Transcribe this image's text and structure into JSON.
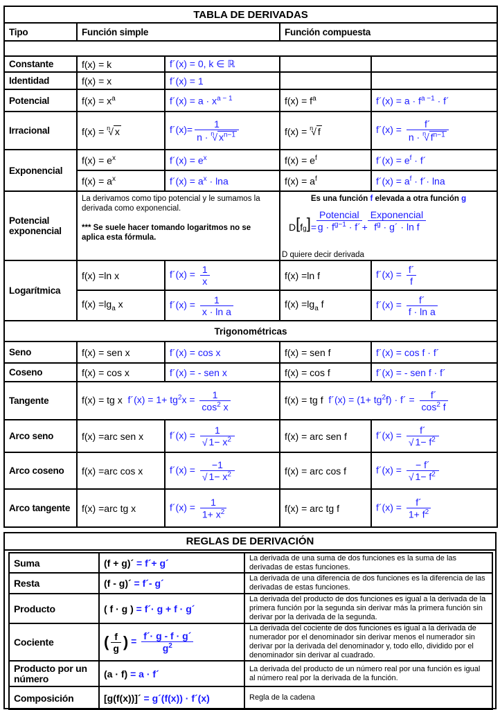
{
  "title": "TABLA DE DERIVADAS",
  "headers": {
    "tipo": "Tipo",
    "simple": "Función simple",
    "compuesta": "Función compuesta"
  },
  "constante": {
    "label": "Constante",
    "f": "f(x) = k",
    "d": "f´(x) = 0, k ∈ ℝ"
  },
  "identidad": {
    "label": "Identidad",
    "f": "f(x) = x",
    "d": "f´(x) = 1"
  },
  "potencial": {
    "label": "Potencial",
    "f": "f(x) = x",
    "f_sup": "a",
    "d": "f´(x) = a · x",
    "d_sup": "a − 1",
    "cf": "f(x) = f",
    "cf_sup": "a",
    "cd": "f´(x) = a · f",
    "cd_sup": "a −1",
    "cd_tail": " · f´"
  },
  "irracional": {
    "label": "Irracional",
    "f": "f(x) = ",
    "idx": "n",
    "f_rad": "x",
    "d_lhs": "f´(x)=",
    "d_num": "1",
    "d_den_pre": "n · ",
    "d_den_rad": "x",
    "d_den_sup": "n−1",
    "cf": "f(x) = ",
    "cf_rad": "f",
    "cd_lhs": "f´(x) = ",
    "cd_num": "f´",
    "cd_den_rad": "f",
    "cd_den_sup": "n−1"
  },
  "exponencial": {
    "label": "Exponencial",
    "f1": "f(x) = e",
    "f1_sup": "x",
    "d1": "f´(x) = e",
    "d1_sup": "x",
    "cf1": "f(x) = e",
    "cf1_sup": "f",
    "cd1": "f´(x) = e",
    "cd1_sup": "f",
    "cd1_tail": " · f´",
    "f2": "f(x) = a",
    "f2_sup": "x",
    "d2": "f´(x) = a",
    "d2_sup": "x",
    "d2_tail": " · lna",
    "cf2": "f(x) = a",
    "cf2_sup": "f",
    "cd2": "f´(x) = a",
    "cd2_sup": "f",
    "cd2_tail": " · f´· lna"
  },
  "potexp": {
    "label": "Potencial exponencial",
    "text1": "La derivamos como tipo potencial y le sumamos la derivada como exponencial.",
    "text2": "*** Se suele hacer tomando logaritmos  no se aplica esta fórmula.",
    "head1": "Es una función ",
    "head_f": "f",
    "head2": " elevada a otra función ",
    "head_g": "g",
    "label_pot": "Potencial",
    "label_exp": "Exponencial",
    "D": "D",
    "base": "f",
    "exp": "g",
    "eq": " = ",
    "t1": "g · f",
    "t1_sup": "g−1",
    "t1_tail": " · f´",
    "plus": " + ",
    "t2": "f",
    "t2_sup": "g",
    "t2_tail": " · g´ · ln f",
    "note": "D quiere  decir derivada"
  },
  "logaritmica": {
    "label": "Logarítmica",
    "f1": "f(x) =ln  x",
    "d1_lhs": "f´(x) = ",
    "d1_num": "1",
    "d1_den": "x",
    "cf1": "f(x) =ln  f",
    "cd1_lhs": "f´(x) = ",
    "cd1_num": "f´",
    "cd1_den": "f",
    "f2": "f(x) =lg",
    "f2_sub": "a",
    "f2_tail": "  x",
    "d2_lhs": "f´(x) = ",
    "d2_num": "1",
    "d2_den": "x  ·  ln a",
    "cf2": "f(x) =lg",
    "cf2_sub": "a",
    "cf2_tail": "  f",
    "cd2_lhs": "f´(x) = ",
    "cd2_num": "f´",
    "cd2_den": "f  ·  ln a"
  },
  "trig_title": "Trigonométricas",
  "seno": {
    "label": "Seno",
    "f": "f(x) = sen x",
    "d": "f´(x) = cos x",
    "cf": "f(x) = sen f",
    "cd": "f´(x) = cos f  ·  f´"
  },
  "coseno": {
    "label": "Coseno",
    "f": "f(x) =  cos  x",
    "d": "f´(x) = - sen x",
    "cf": "f(x) =  cos  f",
    "cd": "f´(x) = - sen f  ·  f´"
  },
  "tangente": {
    "label": "Tangente",
    "f": "f(x) = tg x",
    "d": "f´(x) = 1+ tg",
    "d_sup": "2",
    "d_tail": "x = ",
    "d_num": "1",
    "d_den": "cos",
    "d_den_sup": "2",
    "d_den_tail": " x",
    "cf": "f(x) = tg f",
    "cd": "f´(x) = ",
    "cd_paren": "(1+ tg",
    "cd_sup": "2",
    "cd_paren_tail": "f)",
    "cd_tail": " · f´ = ",
    "cd_num": "f´",
    "cd_den": "cos",
    "cd_den_sup": "2",
    "cd_den_tail": " f"
  },
  "arcoseno": {
    "label": "Arco seno",
    "f": "f(x) =arc sen x",
    "d_lhs": "f´(x) = ",
    "d_num": "1",
    "d_rad": "1− x",
    "d_rad_sup": "2",
    "cf": "f(x) = arc sen f",
    "cd_lhs": "f´(x) = ",
    "cd_num": "f´",
    "cd_rad": "1− f",
    "cd_rad_sup": "2"
  },
  "arcocoseno": {
    "label": "Arco coseno",
    "f": "f(x) =arc cos x",
    "d_lhs": "f´(x) = ",
    "d_num": "−1",
    "d_rad": "1− x",
    "d_rad_sup": "2",
    "cf": "f(x) = arc cos f",
    "cd_lhs": "f´(x) = ",
    "cd_num": "− f´",
    "cd_rad": "1− f",
    "cd_rad_sup": "2"
  },
  "arcotangente": {
    "label": "Arco tangente",
    "f": "f(x) =arc tg x",
    "d_lhs": "f´(x) = ",
    "d_num": "1",
    "d_den": "1+ x",
    "d_den_sup": "2",
    "cf": "f(x) = arc tg f",
    "cd_lhs": "f´(x) = ",
    "cd_num": "f´",
    "cd_den": "1+ f",
    "cd_den_sup": "2"
  },
  "rules": {
    "title": "REGLAS DE DERIVACIÓN",
    "items": [
      {
        "label": "Suma",
        "lhs": "(f + g)´",
        "rhs": "  =  f´+ g´",
        "desc": "La derivada de una suma de dos funciones es la suma de las derivadas de estas funciones."
      },
      {
        "label": "Resta",
        "lhs": "(f - g)´",
        "rhs": "  =  f´- g´",
        "desc": "La derivada de una diferencia de dos funciones es la diferencia de las derivadas de estas funciones."
      },
      {
        "label": "Producto",
        "lhs": "( f · g )",
        "rhs": " = f´· g + f ·  g´",
        "desc": "La derivada del producto de dos funciones es igual a la derivada de la primera función por la segunda sin derivar más la primera función sin derivar por la derivada de la segunda."
      },
      {
        "label": "Cociente",
        "lhs_num": "f",
        "lhs_den": "g",
        "rhs_num": "f´· g - f · g´",
        "rhs_den": "g",
        "rhs_den_sup": "2",
        "desc": "La derivada del cociente de dos funciones es igual a la derivada de numerador por el denominador sin derivar menos el numerador  sin derivar por la derivada del denominador y, todo ello, dividido por el denominador sin derivar al cuadrado."
      },
      {
        "label": "Producto por un número",
        "lhs": "(a · f)",
        "rhs": " = a · f´",
        "desc": "La derivada del producto de un número real por una función es igual al número real por la derivada de la función."
      },
      {
        "label": "Composición",
        "lhs": "[g(f(x))]´",
        "rhs": "  = g´(f(x)) · f´(x)",
        "desc": "Regla de la cadena"
      }
    ]
  },
  "colors": {
    "formula": "#1a1aff",
    "text": "#000000"
  }
}
